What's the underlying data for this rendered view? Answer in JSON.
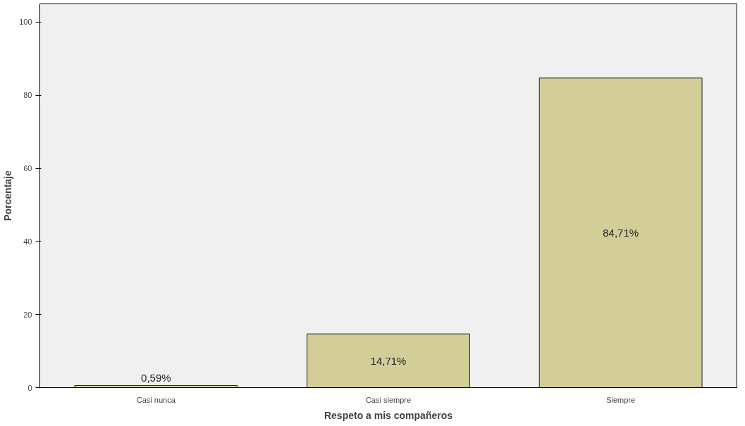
{
  "chart_data": {
    "type": "bar",
    "xlabel": "Respeto a mis compañeros",
    "ylabel": "Porcentaje",
    "categories": [
      "Casi nunca",
      "Casi siempre",
      "Siempre"
    ],
    "values": [
      0.59,
      14.71,
      84.71
    ],
    "value_labels": [
      "0,59%",
      "14,71%",
      "84,71%"
    ],
    "color": "#d3ce98",
    "ylim": [
      0,
      105
    ],
    "yticks": [
      0,
      20,
      40,
      60,
      80,
      100
    ],
    "grid": false
  }
}
